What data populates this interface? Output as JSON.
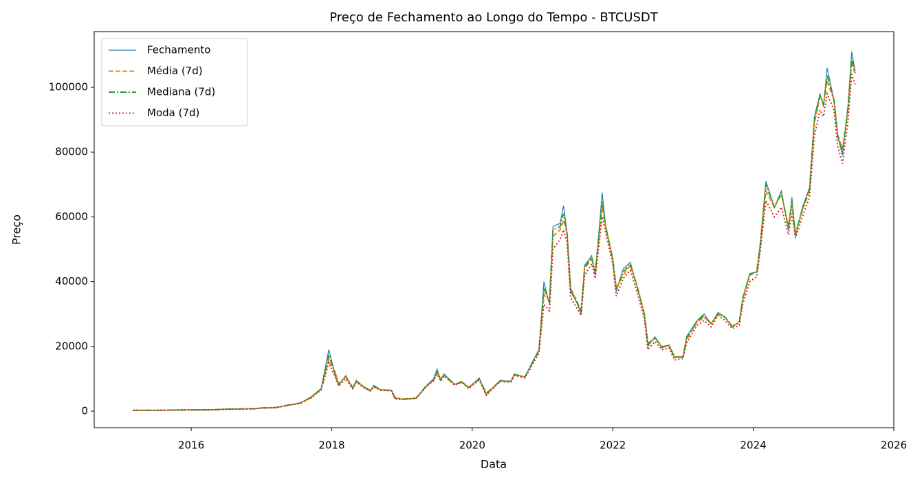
{
  "chart_data": {
    "type": "line",
    "title": "Preço de Fechamento ao Longo do Tempo - BTCUSDT",
    "xlabel": "Data",
    "ylabel": "Preço",
    "x": [
      2015.17,
      2015.5,
      2015.9,
      2016.3,
      2016.5,
      2016.9,
      2017.0,
      2017.2,
      2017.4,
      2017.55,
      2017.7,
      2017.85,
      2017.96,
      2018.05,
      2018.1,
      2018.2,
      2018.3,
      2018.35,
      2018.45,
      2018.55,
      2018.6,
      2018.7,
      2018.85,
      2018.9,
      2019.0,
      2019.2,
      2019.35,
      2019.45,
      2019.5,
      2019.55,
      2019.6,
      2019.75,
      2019.85,
      2019.95,
      2020.1,
      2020.2,
      2020.3,
      2020.4,
      2020.55,
      2020.6,
      2020.75,
      2020.85,
      2020.95,
      2021.02,
      2021.1,
      2021.15,
      2021.25,
      2021.3,
      2021.35,
      2021.4,
      2021.5,
      2021.55,
      2021.6,
      2021.7,
      2021.75,
      2021.85,
      2021.9,
      2022.0,
      2022.05,
      2022.15,
      2022.25,
      2022.35,
      2022.45,
      2022.5,
      2022.6,
      2022.7,
      2022.8,
      2022.88,
      2023.0,
      2023.05,
      2023.2,
      2023.3,
      2023.4,
      2023.5,
      2023.6,
      2023.7,
      2023.8,
      2023.85,
      2023.95,
      2024.05,
      2024.1,
      2024.18,
      2024.3,
      2024.4,
      2024.5,
      2024.55,
      2024.6,
      2024.7,
      2024.8,
      2024.87,
      2024.95,
      2025.0,
      2025.05,
      2025.15,
      2025.2,
      2025.27,
      2025.35,
      2025.4,
      2025.45
    ],
    "series": [
      {
        "name": "Fechamento",
        "color": "#1f77b4",
        "dash": "solid",
        "width": 1.2,
        "values": [
          250,
          260,
          380,
          430,
          650,
          750,
          1000,
          1100,
          2000,
          2500,
          4300,
          7000,
          19000,
          11000,
          8000,
          11000,
          7000,
          9500,
          7500,
          6300,
          8000,
          6500,
          6400,
          4000,
          3700,
          4000,
          8000,
          10000,
          13000,
          9500,
          11500,
          8200,
          9200,
          7200,
          10300,
          5000,
          7500,
          9500,
          9200,
          11500,
          10500,
          15000,
          19000,
          40000,
          33000,
          57000,
          58000,
          63500,
          55000,
          37000,
          33000,
          30000,
          45000,
          48000,
          42000,
          67500,
          57000,
          47000,
          37000,
          44000,
          46000,
          38000,
          30000,
          20000,
          23000,
          19500,
          20500,
          16500,
          16800,
          23000,
          28000,
          30000,
          27000,
          30500,
          29000,
          26000,
          27500,
          35000,
          42500,
          43000,
          52000,
          71000,
          63000,
          68000,
          56000,
          66000,
          54000,
          63000,
          69000,
          91000,
          98000,
          94000,
          106000,
          96000,
          85000,
          79000,
          95000,
          111000,
          105000
        ]
      },
      {
        "name": "Média (7d)",
        "color": "#ff7f0e",
        "dash": "dashed",
        "width": 2,
        "values": [
          250,
          260,
          370,
          420,
          620,
          730,
          960,
          1080,
          1900,
          2450,
          4100,
          6800,
          16000,
          12000,
          8500,
          10500,
          7300,
          9200,
          7600,
          6400,
          7600,
          6600,
          6400,
          4300,
          3700,
          4000,
          7800,
          9600,
          12000,
          10000,
          11000,
          8300,
          9000,
          7400,
          9900,
          5600,
          7300,
          9300,
          9200,
          11200,
          10600,
          14500,
          18500,
          36000,
          34000,
          54000,
          56000,
          59000,
          55000,
          38000,
          33500,
          31000,
          44000,
          47000,
          43000,
          63000,
          57000,
          47000,
          38000,
          42000,
          45000,
          38500,
          30000,
          21000,
          22500,
          20000,
          20300,
          16800,
          16800,
          22000,
          27500,
          29000,
          27000,
          30000,
          29000,
          26300,
          27300,
          34500,
          42000,
          43000,
          51000,
          68000,
          63000,
          67000,
          57000,
          64000,
          55000,
          62000,
          68000,
          89000,
          97000,
          95000,
          102000,
          96000,
          85500,
          81000,
          93000,
          108000,
          104000
        ]
      },
      {
        "name": "Mediana (7d)",
        "color": "#2ca02c",
        "dash": "dashdot",
        "width": 2,
        "values": [
          250,
          260,
          375,
          425,
          640,
          740,
          990,
          1090,
          1950,
          2480,
          4200,
          6900,
          17500,
          11500,
          8200,
          10800,
          7100,
          9400,
          7600,
          6350,
          7800,
          6550,
          6400,
          4100,
          3700,
          4000,
          7900,
          9800,
          12500,
          9700,
          11300,
          8250,
          9100,
          7300,
          10100,
          5300,
          7400,
          9400,
          9200,
          11400,
          10550,
          14800,
          18800,
          38000,
          33500,
          56000,
          57000,
          61000,
          55000,
          37500,
          33200,
          30500,
          44500,
          47500,
          42500,
          65000,
          57000,
          47000,
          37500,
          43000,
          45500,
          38200,
          30000,
          20500,
          22800,
          19700,
          20400,
          16600,
          16800,
          22500,
          27800,
          29500,
          27000,
          30200,
          29000,
          26100,
          27400,
          34800,
          42300,
          43000,
          51500,
          70000,
          63000,
          67500,
          56500,
          65000,
          54500,
          62500,
          68500,
          90000,
          97500,
          94500,
          104000,
          96000,
          85200,
          80000,
          94000,
          109000,
          104500
        ]
      },
      {
        "name": "Moda (7d)",
        "color": "#d62728",
        "dash": "dotted",
        "width": 2,
        "values": [
          240,
          250,
          360,
          410,
          600,
          720,
          950,
          1050,
          1850,
          2400,
          4000,
          6600,
          15000,
          10500,
          7800,
          10000,
          6900,
          9000,
          7300,
          6200,
          7500,
          6400,
          6300,
          3800,
          3600,
          3900,
          7600,
          9400,
          11500,
          9300,
          10800,
          8000,
          8900,
          7000,
          9600,
          4900,
          7100,
          9100,
          9000,
          11000,
          10300,
          14000,
          18000,
          33000,
          31000,
          50000,
          53000,
          56000,
          52000,
          35000,
          31500,
          29500,
          42000,
          45500,
          41000,
          60000,
          55000,
          45500,
          35500,
          41000,
          43500,
          36500,
          28500,
          19000,
          21500,
          19000,
          19500,
          15800,
          16300,
          21000,
          26500,
          28000,
          26000,
          29500,
          28000,
          25500,
          26500,
          33000,
          40000,
          41500,
          49500,
          65000,
          60000,
          63000,
          54500,
          61000,
          53500,
          60000,
          66000,
          85000,
          93000,
          91000,
          98000,
          93000,
          82000,
          76500,
          90000,
          104000,
          101000
        ]
      }
    ],
    "xlim": [
      2014.62,
      2026
    ],
    "xticks": [
      2016,
      2018,
      2020,
      2022,
      2024,
      2026
    ],
    "ylim": [
      -5100,
      117200
    ],
    "yticks": [
      0,
      20000,
      40000,
      60000,
      80000,
      100000
    ],
    "legend": "upper left",
    "grid": false
  }
}
